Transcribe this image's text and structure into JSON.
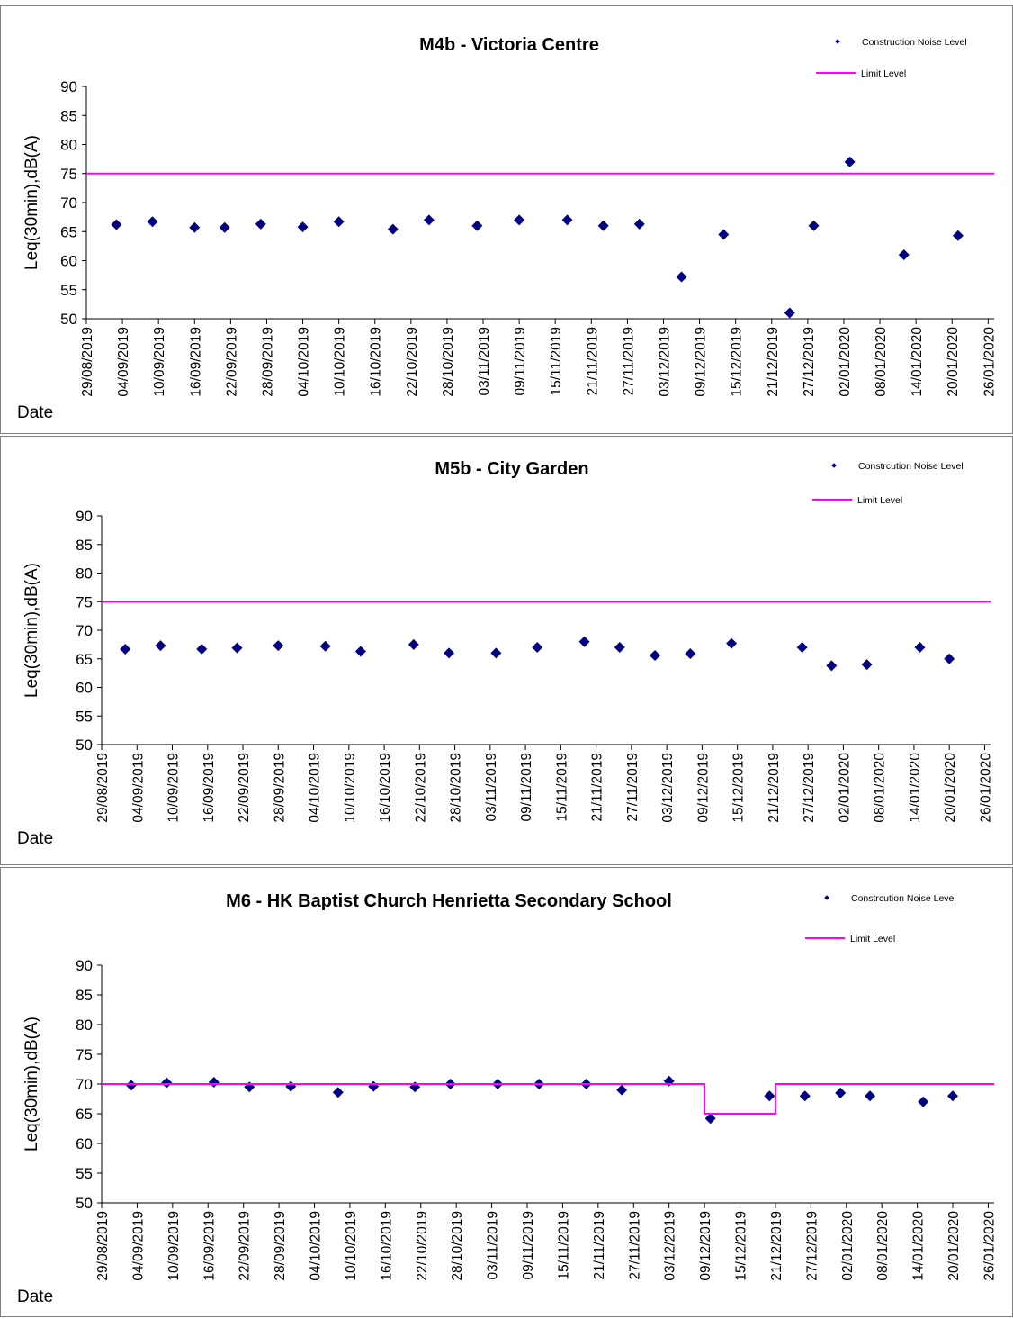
{
  "chart_data": [
    {
      "type": "scatter",
      "title": "M4b - Victoria Centre",
      "ylabel": "Leq(30min),dB(A)",
      "xlabel": "Date",
      "ylim": [
        50,
        90
      ],
      "yticks": [
        50,
        55,
        60,
        65,
        70,
        75,
        80,
        85,
        90
      ],
      "xlim": [
        "29/08/2019",
        "27/01/2020"
      ],
      "xticks": [
        "29/08/2019",
        "04/09/2019",
        "10/09/2019",
        "16/09/2019",
        "22/09/2019",
        "28/09/2019",
        "04/10/2019",
        "10/10/2019",
        "16/10/2019",
        "22/10/2019",
        "28/10/2019",
        "03/11/2019",
        "09/11/2019",
        "15/11/2019",
        "21/11/2019",
        "27/11/2019",
        "03/12/2019",
        "09/12/2019",
        "15/12/2019",
        "21/12/2019",
        "27/12/2019",
        "02/01/2020",
        "08/01/2020",
        "14/01/2020",
        "20/01/2020",
        "26/01/2020"
      ],
      "legend_position": "top-right",
      "series": [
        {
          "name": "Construction Noise Level",
          "marker": "diamond",
          "color": "#000080",
          "points": [
            [
              "03/09/2019",
              66.2
            ],
            [
              "09/09/2019",
              66.7
            ],
            [
              "16/09/2019",
              65.7
            ],
            [
              "21/09/2019",
              65.7
            ],
            [
              "27/09/2019",
              66.3
            ],
            [
              "04/10/2019",
              65.8
            ],
            [
              "10/10/2019",
              66.7
            ],
            [
              "19/10/2019",
              65.4
            ],
            [
              "25/10/2019",
              67.0
            ],
            [
              "02/11/2019",
              66.0
            ],
            [
              "09/11/2019",
              67.0
            ],
            [
              "17/11/2019",
              67.0
            ],
            [
              "23/11/2019",
              66.0
            ],
            [
              "29/11/2019",
              66.3
            ],
            [
              "06/12/2019",
              57.2
            ],
            [
              "13/12/2019",
              64.5
            ],
            [
              "24/12/2019",
              51.0
            ],
            [
              "28/12/2019",
              66.0
            ],
            [
              "03/01/2020",
              77.0
            ],
            [
              "12/01/2020",
              61.0
            ],
            [
              "21/01/2020",
              64.3
            ]
          ]
        },
        {
          "name": "Limit Level",
          "type": "line",
          "color": "#FF00FF",
          "points": [
            [
              "29/08/2019",
              75
            ],
            [
              "27/01/2020",
              75
            ]
          ]
        }
      ]
    },
    {
      "type": "scatter",
      "title": "M5b - City Garden",
      "ylabel": "Leq(30min),dB(A)",
      "xlabel": "Date",
      "ylim": [
        50,
        90
      ],
      "yticks": [
        50,
        55,
        60,
        65,
        70,
        75,
        80,
        85,
        90
      ],
      "xlim": [
        "29/08/2019",
        "27/01/2020"
      ],
      "xticks": [
        "29/08/2019",
        "04/09/2019",
        "10/09/2019",
        "16/09/2019",
        "22/09/2019",
        "28/09/2019",
        "04/10/2019",
        "10/10/2019",
        "16/10/2019",
        "22/10/2019",
        "28/10/2019",
        "03/11/2019",
        "09/11/2019",
        "15/11/2019",
        "21/11/2019",
        "27/11/2019",
        "03/12/2019",
        "09/12/2019",
        "15/12/2019",
        "21/12/2019",
        "27/12/2019",
        "02/01/2020",
        "08/01/2020",
        "14/01/2020",
        "20/01/2020",
        "26/01/2020"
      ],
      "legend_position": "top-right",
      "series": [
        {
          "name": "Constrcution Noise Level",
          "marker": "diamond",
          "color": "#000080",
          "points": [
            [
              "02/09/2019",
              66.7
            ],
            [
              "08/09/2019",
              67.3
            ],
            [
              "15/09/2019",
              66.7
            ],
            [
              "21/09/2019",
              66.9
            ],
            [
              "28/09/2019",
              67.3
            ],
            [
              "06/10/2019",
              67.2
            ],
            [
              "12/10/2019",
              66.3
            ],
            [
              "21/10/2019",
              67.5
            ],
            [
              "27/10/2019",
              66.0
            ],
            [
              "04/11/2019",
              66.0
            ],
            [
              "11/11/2019",
              67.0
            ],
            [
              "19/11/2019",
              68.0
            ],
            [
              "25/11/2019",
              67.0
            ],
            [
              "01/12/2019",
              65.6
            ],
            [
              "07/12/2019",
              65.9
            ],
            [
              "14/12/2019",
              67.7
            ],
            [
              "26/12/2019",
              67.0
            ],
            [
              "31/12/2019",
              63.8
            ],
            [
              "06/01/2020",
              64.0
            ],
            [
              "15/01/2020",
              67.0
            ],
            [
              "20/01/2020",
              65.0
            ]
          ]
        },
        {
          "name": "Limit Level",
          "type": "line",
          "color": "#FF00FF",
          "points": [
            [
              "29/08/2019",
              75
            ],
            [
              "27/01/2020",
              75
            ]
          ]
        }
      ]
    },
    {
      "type": "scatter",
      "title": "M6 - HK Baptist Church Henrietta Secondary School",
      "ylabel": "Leq(30min),dB(A)",
      "xlabel": "Date",
      "ylim": [
        50,
        90
      ],
      "yticks": [
        50,
        55,
        60,
        65,
        70,
        75,
        80,
        85,
        90
      ],
      "xlim": [
        "29/08/2019",
        "27/01/2020"
      ],
      "xticks": [
        "29/08/2019",
        "04/09/2019",
        "10/09/2019",
        "16/09/2019",
        "22/09/2019",
        "28/09/2019",
        "04/10/2019",
        "10/10/2019",
        "16/10/2019",
        "22/10/2019",
        "28/10/2019",
        "03/11/2019",
        "09/11/2019",
        "15/11/2019",
        "21/11/2019",
        "27/11/2019",
        "03/12/2019",
        "09/12/2019",
        "15/12/2019",
        "21/12/2019",
        "27/12/2019",
        "02/01/2020",
        "08/01/2020",
        "14/01/2020",
        "20/01/2020",
        "26/01/2020"
      ],
      "legend_position": "top-right",
      "series": [
        {
          "name": "Constrcution Noise Level",
          "marker": "diamond",
          "color": "#000080",
          "points": [
            [
              "03/09/2019",
              69.8
            ],
            [
              "09/09/2019",
              70.2
            ],
            [
              "17/09/2019",
              70.3
            ],
            [
              "23/09/2019",
              69.5
            ],
            [
              "30/09/2019",
              69.6
            ],
            [
              "08/10/2019",
              68.6
            ],
            [
              "14/10/2019",
              69.6
            ],
            [
              "21/10/2019",
              69.5
            ],
            [
              "27/10/2019",
              70.0
            ],
            [
              "04/11/2019",
              70.0
            ],
            [
              "11/11/2019",
              70.0
            ],
            [
              "19/11/2019",
              70.0
            ],
            [
              "25/11/2019",
              69.0
            ],
            [
              "03/12/2019",
              70.5
            ],
            [
              "10/12/2019",
              64.2
            ],
            [
              "20/12/2019",
              68.0
            ],
            [
              "26/12/2019",
              68.0
            ],
            [
              "01/01/2020",
              68.5
            ],
            [
              "06/01/2020",
              68.0
            ],
            [
              "15/01/2020",
              67.0
            ],
            [
              "20/01/2020",
              68.0
            ]
          ]
        },
        {
          "name": "Limit Level",
          "type": "line",
          "color": "#FF00FF",
          "points": [
            [
              "29/08/2019",
              70
            ],
            [
              "09/12/2019",
              70
            ],
            [
              "09/12/2019",
              65
            ],
            [
              "21/12/2019",
              65
            ],
            [
              "21/12/2019",
              70
            ],
            [
              "27/01/2020",
              70
            ]
          ]
        }
      ]
    }
  ]
}
